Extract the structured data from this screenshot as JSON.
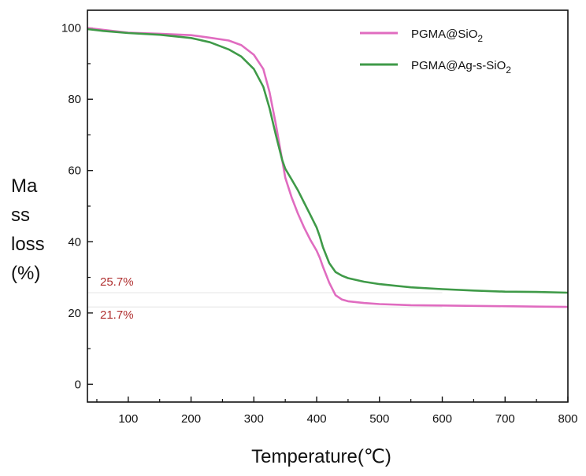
{
  "chart_data": {
    "type": "line",
    "xlabel": "Temperature(℃)",
    "ylabel_lines": [
      "Ma",
      "ss",
      "loss",
      "(%)"
    ],
    "xlim": [
      35,
      800
    ],
    "ylim": [
      -5,
      105
    ],
    "xticks": [
      100,
      200,
      300,
      400,
      500,
      600,
      700,
      800
    ],
    "yticks": [
      0,
      20,
      40,
      60,
      80,
      100
    ],
    "grid": false,
    "legend_position": "top-right",
    "series": [
      {
        "name": "PGMA@SiO2",
        "color": "#e06cc0",
        "x": [
          35,
          60,
          100,
          150,
          200,
          230,
          260,
          280,
          300,
          315,
          325,
          335,
          345,
          350,
          360,
          370,
          380,
          390,
          400,
          405,
          410,
          420,
          430,
          440,
          450,
          475,
          500,
          550,
          600,
          650,
          700,
          750,
          800
        ],
        "y": [
          100,
          99.5,
          98.7,
          98.4,
          98,
          97.3,
          96.5,
          95.2,
          92.5,
          88.5,
          82,
          73,
          63,
          58,
          52.5,
          48,
          44,
          40.5,
          37.5,
          35.5,
          33,
          28.5,
          25,
          23.8,
          23.3,
          22.8,
          22.5,
          22.2,
          22.1,
          22,
          21.9,
          21.8,
          21.7
        ]
      },
      {
        "name": "PGMA@Ag-s-SiO2",
        "color": "#3f9a48",
        "x": [
          35,
          60,
          100,
          150,
          200,
          230,
          260,
          280,
          300,
          315,
          325,
          335,
          345,
          350,
          360,
          370,
          380,
          390,
          400,
          405,
          410,
          420,
          430,
          440,
          450,
          475,
          500,
          550,
          600,
          650,
          700,
          750,
          800
        ],
        "y": [
          99.7,
          99.2,
          98.6,
          98.1,
          97.2,
          96,
          94,
          92,
          88.5,
          83.5,
          77.5,
          70,
          63,
          60.5,
          57.5,
          54.5,
          51,
          47.5,
          44,
          41.5,
          38.5,
          34,
          31.5,
          30.5,
          29.8,
          28.8,
          28.1,
          27.2,
          26.7,
          26.3,
          26,
          25.9,
          25.7
        ]
      }
    ],
    "annotations": [
      {
        "text": "25.7%",
        "y": 25.7,
        "color": "#b03030"
      },
      {
        "text": "21.7%",
        "y": 21.7,
        "color": "#b03030"
      }
    ]
  },
  "legend": [
    {
      "main": "PGMA@SiO",
      "sub": "2"
    },
    {
      "main": "PGMA@Ag-s-SiO",
      "sub": "2"
    }
  ]
}
